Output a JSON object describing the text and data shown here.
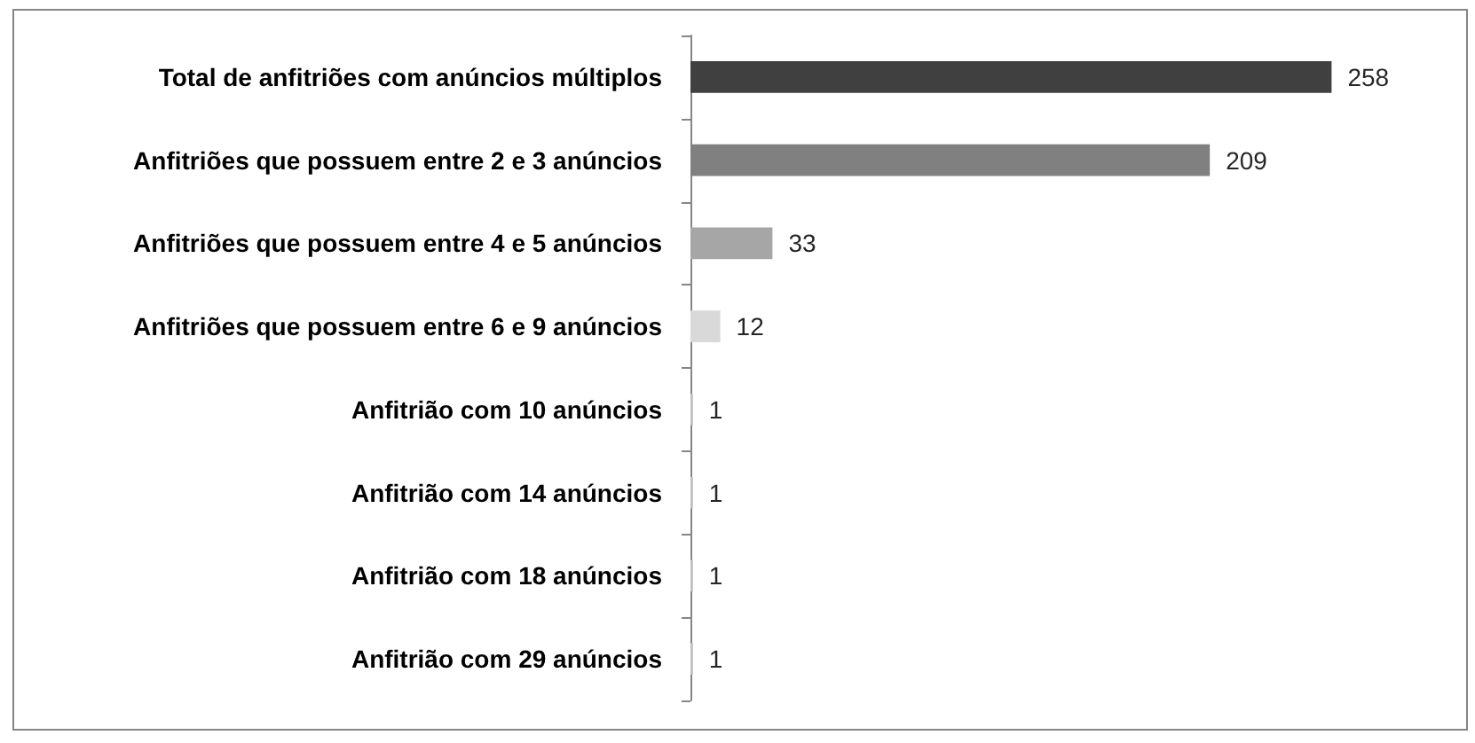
{
  "chart_data": {
    "type": "bar",
    "orientation": "horizontal",
    "categories": [
      "Total de anfitriões com anúncios múltiplos",
      "Anfitriões que possuem entre 2 e 3 anúncios",
      "Anfitriões que possuem entre 4 e 5 anúncios",
      "Anfitriões que possuem entre 6 e 9 anúncios",
      "Anfitrião com 10 anúncios",
      "Anfitrião com 14 anúncios",
      "Anfitrião com 18 anúncios",
      "Anfitrião com 29 anúncios"
    ],
    "values": [
      258,
      209,
      33,
      12,
      1,
      1,
      1,
      1
    ],
    "colors": [
      "#404040",
      "#808080",
      "#a6a6a6",
      "#d9d9d9",
      "#c0c0c0",
      "#c0c0c0",
      "#c0c0c0",
      "#c0c0c0"
    ],
    "data_labels": true,
    "tick_labels": "y"
  }
}
